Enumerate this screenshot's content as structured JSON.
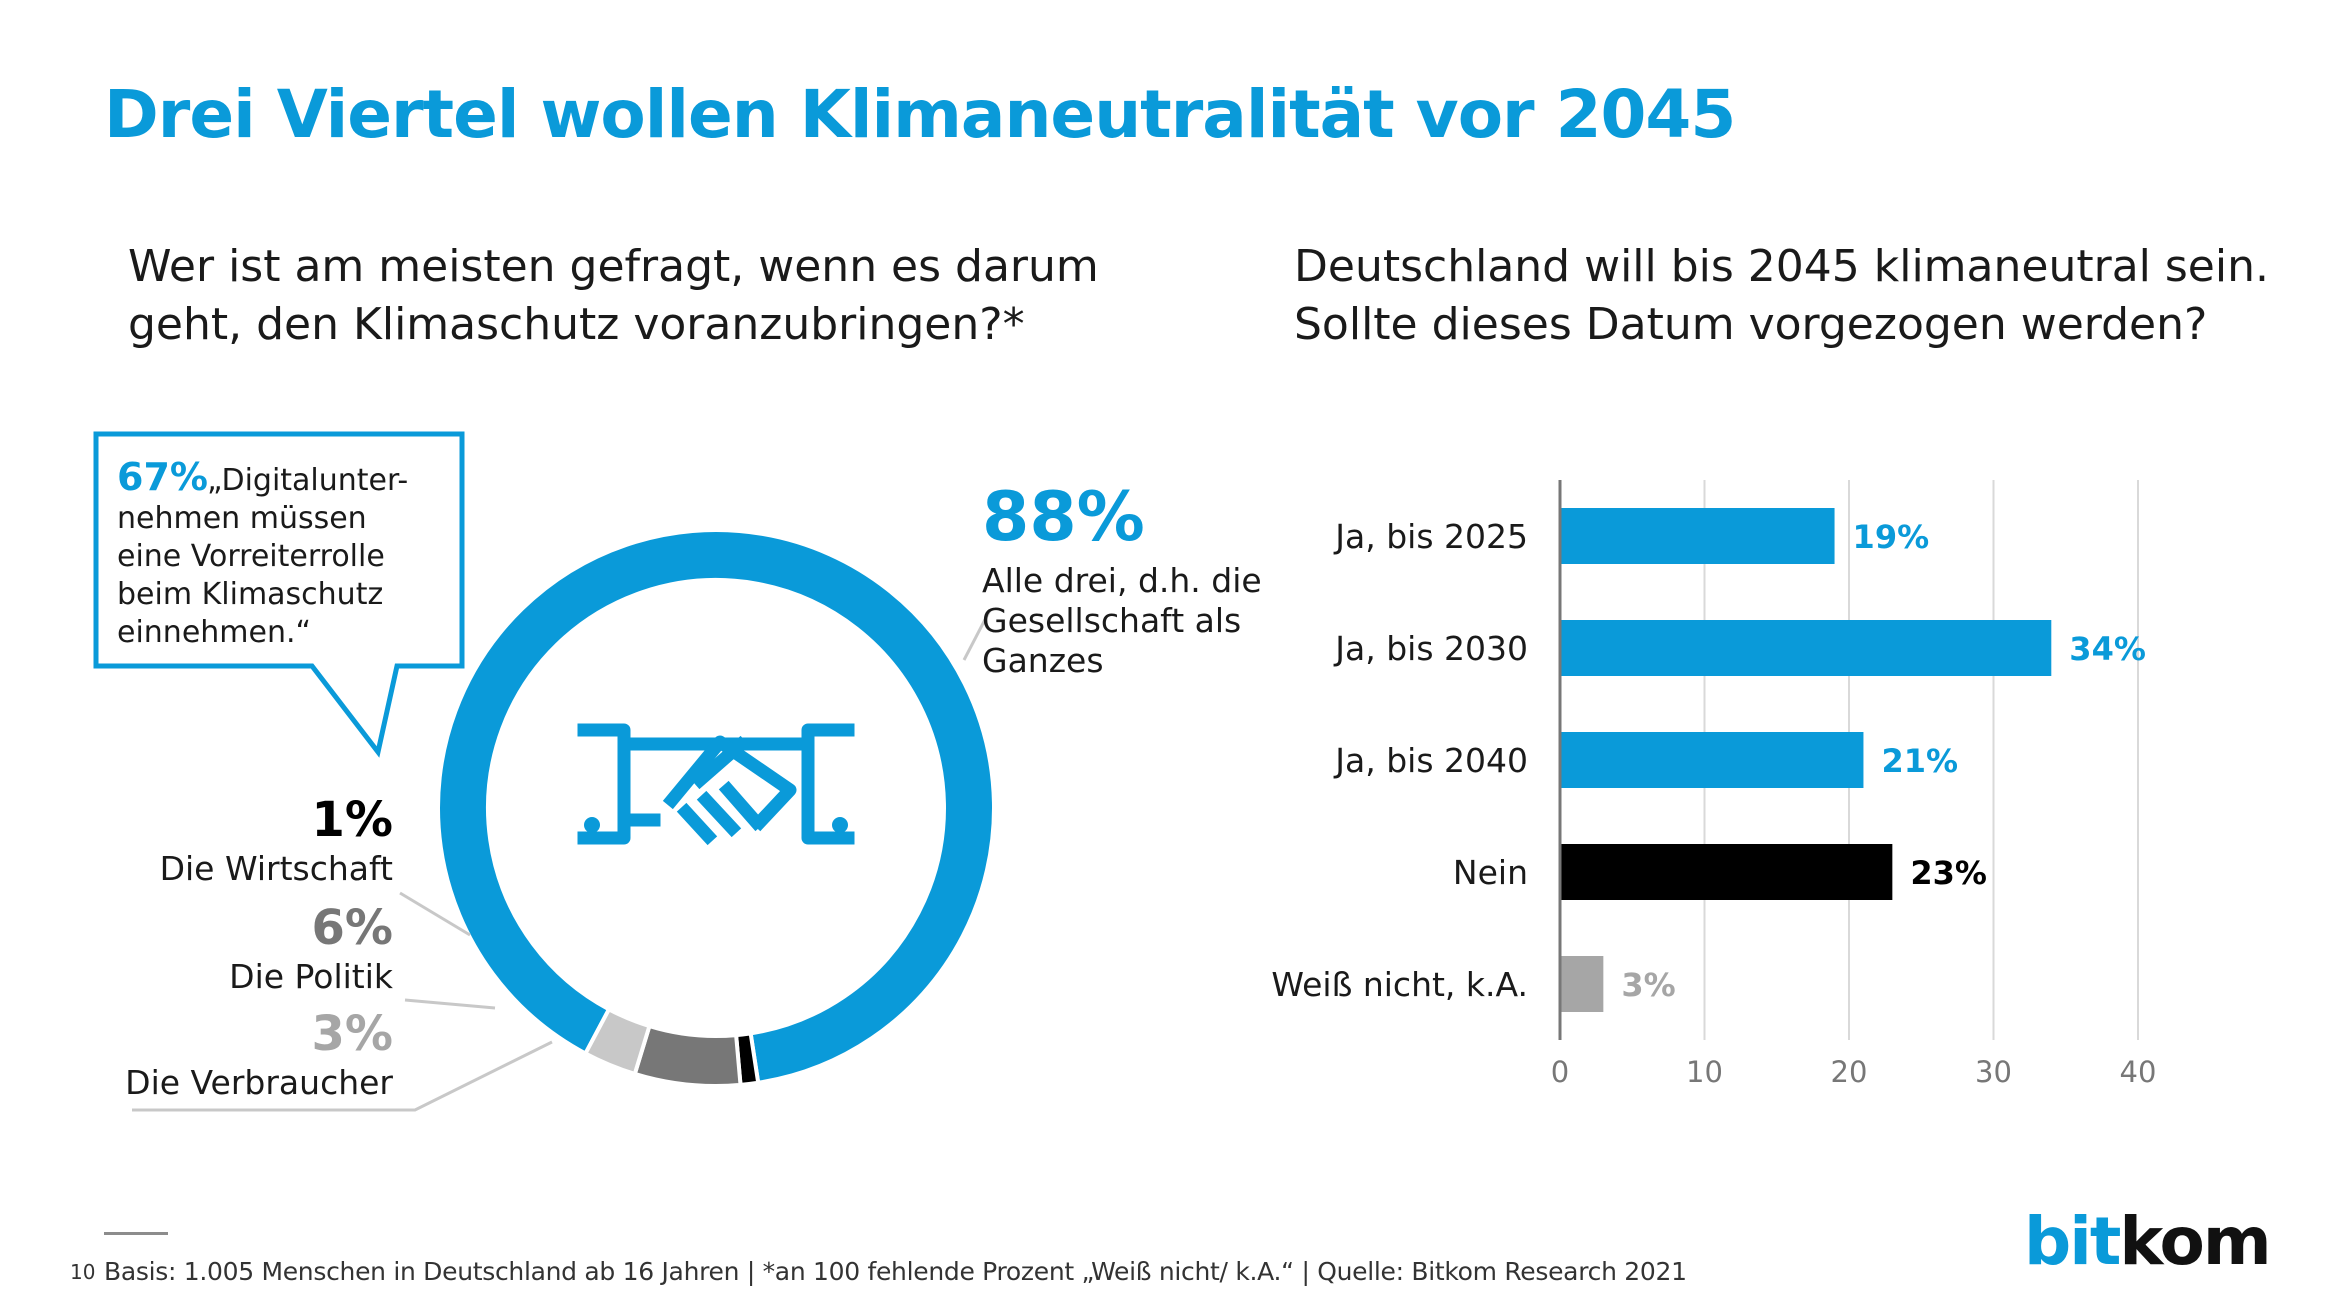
{
  "title": "Drei Viertel wollen Klimaneutralität vor 2045",
  "left_question": [
    "Wer ist am meisten gefragt, wenn es darum",
    "geht, den Klimaschutz voranzubringen?*"
  ],
  "right_question": [
    "Deutschland will bis 2045 klimaneutral sein.",
    "Sollte dieses Datum vorgezogen werden?"
  ],
  "callout": {
    "percent": "67%",
    "lines": [
      "„Digitalunter-",
      "nehmen müssen",
      "eine Vorreiterrolle",
      "beim Klimaschutz",
      "einnehmen.“"
    ]
  },
  "icon": "handshake-icon",
  "footer": {
    "page": "10",
    "note": "Basis: 1.005 Menschen in Deutschland ab 16 Jahren | *an 100 fehlende Prozent „Weiß nicht/ k.A.“  | Quelle: Bitkom Research 2021"
  },
  "logo": {
    "part1": "bit",
    "part2": "kom"
  },
  "colors": {
    "blue": "#0a9ad9",
    "black": "#000000",
    "dark_gray": "#777777",
    "light_gray": "#c8c8c8",
    "bar_gray": "#a6a6a6"
  },
  "chart_data": [
    {
      "type": "pie",
      "style": "donut",
      "values": [
        88,
        1,
        6,
        3
      ],
      "value_labels": [
        "88%",
        "1%",
        "6%",
        "3%"
      ],
      "labels": [
        [
          "Alle drei, d.h. die",
          "Gesellschaft als",
          "Ganzes"
        ],
        [
          "Die Wirtschaft"
        ],
        [
          "Die Politik"
        ],
        [
          "Die Verbraucher"
        ]
      ],
      "colors": [
        "#0a9ad9",
        "#000000",
        "#777777",
        "#c8c8c8"
      ]
    },
    {
      "type": "bar",
      "orientation": "horizontal",
      "categories": [
        "Ja, bis 2025",
        "Ja, bis 2030",
        "Ja, bis 2040",
        "Nein",
        "Weiß nicht, k.A."
      ],
      "values": [
        19,
        34,
        21,
        23,
        3
      ],
      "value_labels": [
        "19%",
        "34%",
        "21%",
        "23%",
        "3%"
      ],
      "colors": [
        "#0a9ad9",
        "#0a9ad9",
        "#0a9ad9",
        "#000000",
        "#a6a6a6"
      ],
      "label_colors": [
        "#0a9ad9",
        "#0a9ad9",
        "#0a9ad9",
        "#000000",
        "#a6a6a6"
      ],
      "xlim": [
        0,
        40
      ],
      "xticks": [
        "0",
        "10",
        "20",
        "30",
        "40"
      ],
      "grid": true
    }
  ]
}
